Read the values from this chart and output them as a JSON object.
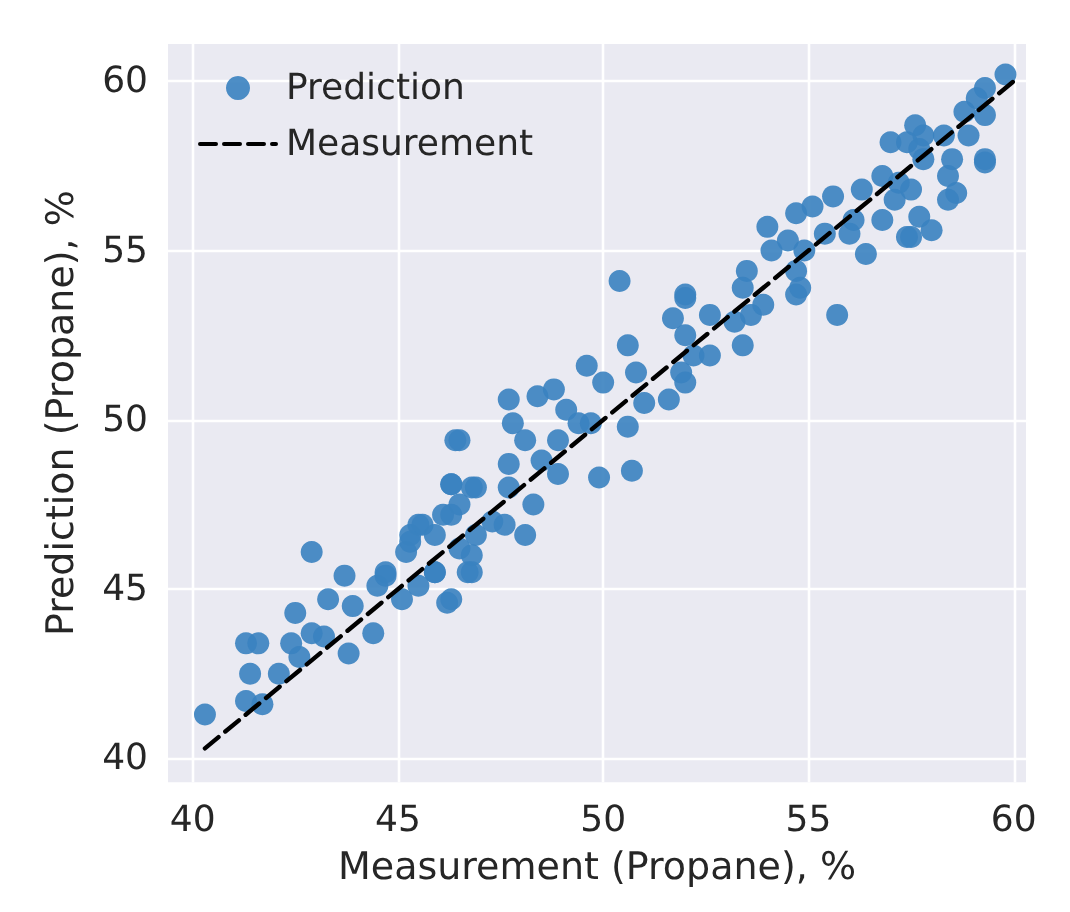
{
  "chart_data": {
    "type": "scatter",
    "xlabel": "Measurement (Propane), %",
    "ylabel": "Prediction (Propane), %",
    "xlim": [
      39.4,
      60.3
    ],
    "ylim": [
      39.3,
      61.1
    ],
    "xticks": [
      40,
      45,
      50,
      55,
      60
    ],
    "yticks": [
      40,
      45,
      50,
      55,
      60
    ],
    "grid": true,
    "legend": "top left",
    "marker": "circle",
    "series": [
      {
        "name": "Prediction",
        "color": "#3a82c0",
        "x": [
          40.3,
          41.3,
          41.7,
          41.4,
          41.3,
          41.6,
          42.1,
          42.4,
          42.6,
          42.5,
          42.9,
          42.9,
          43.2,
          43.7,
          43.8,
          43.3,
          43.9,
          44.4,
          44.5,
          44.7,
          45.1,
          45.3,
          45.2,
          45.5,
          45.5,
          45.9,
          46.2,
          46.3,
          46.4,
          46.1,
          46.5,
          46.7,
          46.8,
          46.9,
          47.3,
          50.4,
          52.0,
          51.7,
          50.6,
          49.6,
          50.0,
          50.8,
          51.9,
          51.6,
          47.7,
          47.8,
          48.4,
          48.8,
          46.5,
          48.1,
          49.1,
          49.4,
          48.9,
          50.6,
          49.9,
          50.7,
          47.7,
          48.5,
          48.9,
          46.3,
          46.9,
          47.7,
          48.3,
          46.3,
          46.5,
          47.6,
          48.1,
          45.6,
          45.9,
          46.8,
          46.8,
          45.9,
          44.7,
          46.3,
          45.3,
          57.0,
          56.8,
          56.3,
          55.6,
          57.5,
          57.1,
          56.8,
          56.1,
          57.5,
          56.4,
          56.0,
          55.4,
          55.1,
          54.7,
          54.0,
          54.5,
          54.9,
          54.1,
          53.5,
          54.7,
          54.7,
          54.8,
          55.7,
          53.4,
          53.6,
          53.9,
          53.2,
          53.4,
          52.6,
          52.0,
          52.0,
          52.6,
          52.2,
          52.0,
          51.0,
          49.7,
          59.8,
          59.3,
          59.1,
          58.8,
          59.3,
          57.6,
          57.8,
          57.4,
          57.7,
          58.3,
          58.9,
          57.8,
          58.5,
          59.3,
          59.3,
          58.4,
          57.2,
          58.6,
          58.4,
          57.7,
          58.0,
          57.4
        ],
        "values": [
          41.3,
          41.7,
          41.6,
          42.5,
          43.4,
          43.4,
          42.5,
          43.4,
          43.0,
          44.3,
          46.1,
          43.7,
          43.6,
          45.4,
          43.1,
          44.7,
          44.5,
          43.7,
          45.1,
          45.4,
          44.7,
          46.6,
          46.1,
          45.1,
          46.9,
          45.5,
          44.6,
          48.1,
          49.4,
          47.2,
          46.2,
          45.5,
          48.0,
          46.6,
          47.0,
          54.1,
          53.7,
          53.0,
          52.2,
          51.6,
          51.1,
          51.4,
          51.4,
          50.6,
          50.6,
          49.9,
          50.7,
          50.9,
          49.4,
          49.4,
          50.3,
          49.9,
          49.4,
          49.8,
          48.3,
          48.5,
          48.7,
          48.8,
          48.4,
          48.1,
          48.0,
          48.0,
          47.5,
          47.2,
          47.5,
          46.9,
          46.6,
          46.9,
          46.6,
          46.0,
          45.5,
          45.5,
          45.5,
          44.7,
          46.4,
          58.2,
          57.2,
          56.8,
          56.6,
          56.8,
          56.5,
          55.9,
          55.9,
          55.4,
          54.9,
          55.5,
          55.5,
          56.3,
          56.1,
          55.7,
          55.3,
          55.0,
          55.0,
          54.4,
          54.4,
          53.7,
          53.9,
          53.1,
          53.9,
          53.1,
          53.4,
          52.9,
          52.2,
          53.1,
          53.6,
          52.5,
          51.9,
          51.9,
          51.1,
          50.5,
          49.9,
          60.2,
          59.8,
          59.5,
          59.1,
          59.0,
          58.7,
          58.4,
          58.2,
          58.0,
          58.4,
          58.4,
          57.7,
          57.7,
          57.7,
          57.6,
          57.2,
          57.0,
          56.7,
          56.5,
          56.0,
          55.6,
          55.4
        ]
      },
      {
        "name": "Measurement",
        "type": "line",
        "color": "#000000",
        "line_style": "dashed",
        "marker": "none",
        "x": [
          40.3,
          60.0
        ],
        "values": [
          40.3,
          60.0
        ]
      }
    ]
  }
}
